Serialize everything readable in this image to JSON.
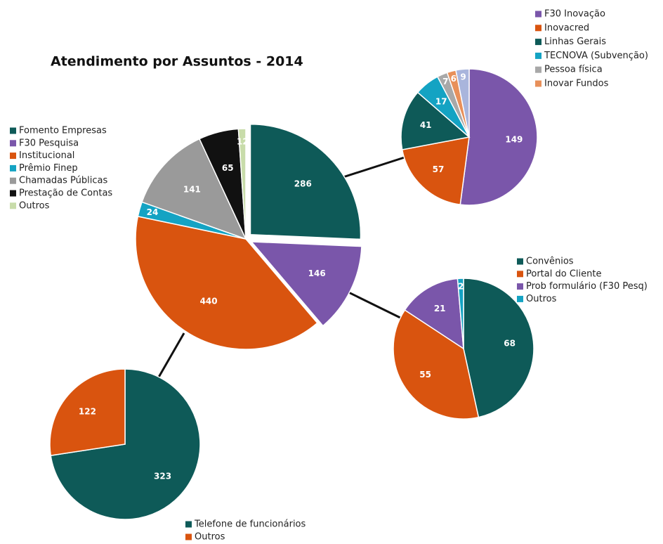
{
  "chart_data": [
    {
      "type": "pie",
      "title": "Atendimento por Assuntos - 2014",
      "categories": [
        "Fomento Empresas",
        "F30 Pesquisa",
        "Institucional",
        "Prêmio Finep",
        "Chamadas Públicas",
        "Prestação de Contas",
        "Outros"
      ],
      "values": [
        286,
        146,
        440,
        24,
        141,
        65,
        12
      ],
      "colors": [
        "#0e5a58",
        "#7a56aa",
        "#d9540f",
        "#14a3c3",
        "#9a9a9a",
        "#111111",
        "#c8dcaa"
      ]
    },
    {
      "type": "pie",
      "categories": [
        "F30 Inovação",
        "Inovacred",
        "Linhas Gerais",
        "TECNOVA (Subvenção)",
        "Pessoa física",
        "Inovar Fundos",
        null
      ],
      "values": [
        149,
        57,
        41,
        17,
        7,
        6,
        9
      ],
      "colors": [
        "#7a56aa",
        "#d9540f",
        "#0e5a58",
        "#14a3c3",
        "#a8a8a8",
        "#e8905a",
        "#a9b5dc"
      ]
    },
    {
      "type": "pie",
      "categories": [
        "Convênios",
        "Portal do Cliente",
        "Prob formulário (F30 Pesq)",
        "Outros"
      ],
      "values": [
        68,
        55,
        21,
        2
      ],
      "colors": [
        "#0e5a58",
        "#d9540f",
        "#7a56aa",
        "#14a3c3"
      ]
    },
    {
      "type": "pie",
      "categories": [
        "Telefone de funcionários",
        "Outros"
      ],
      "values": [
        323,
        122
      ],
      "colors": [
        "#0e5a58",
        "#d9540f"
      ]
    }
  ]
}
